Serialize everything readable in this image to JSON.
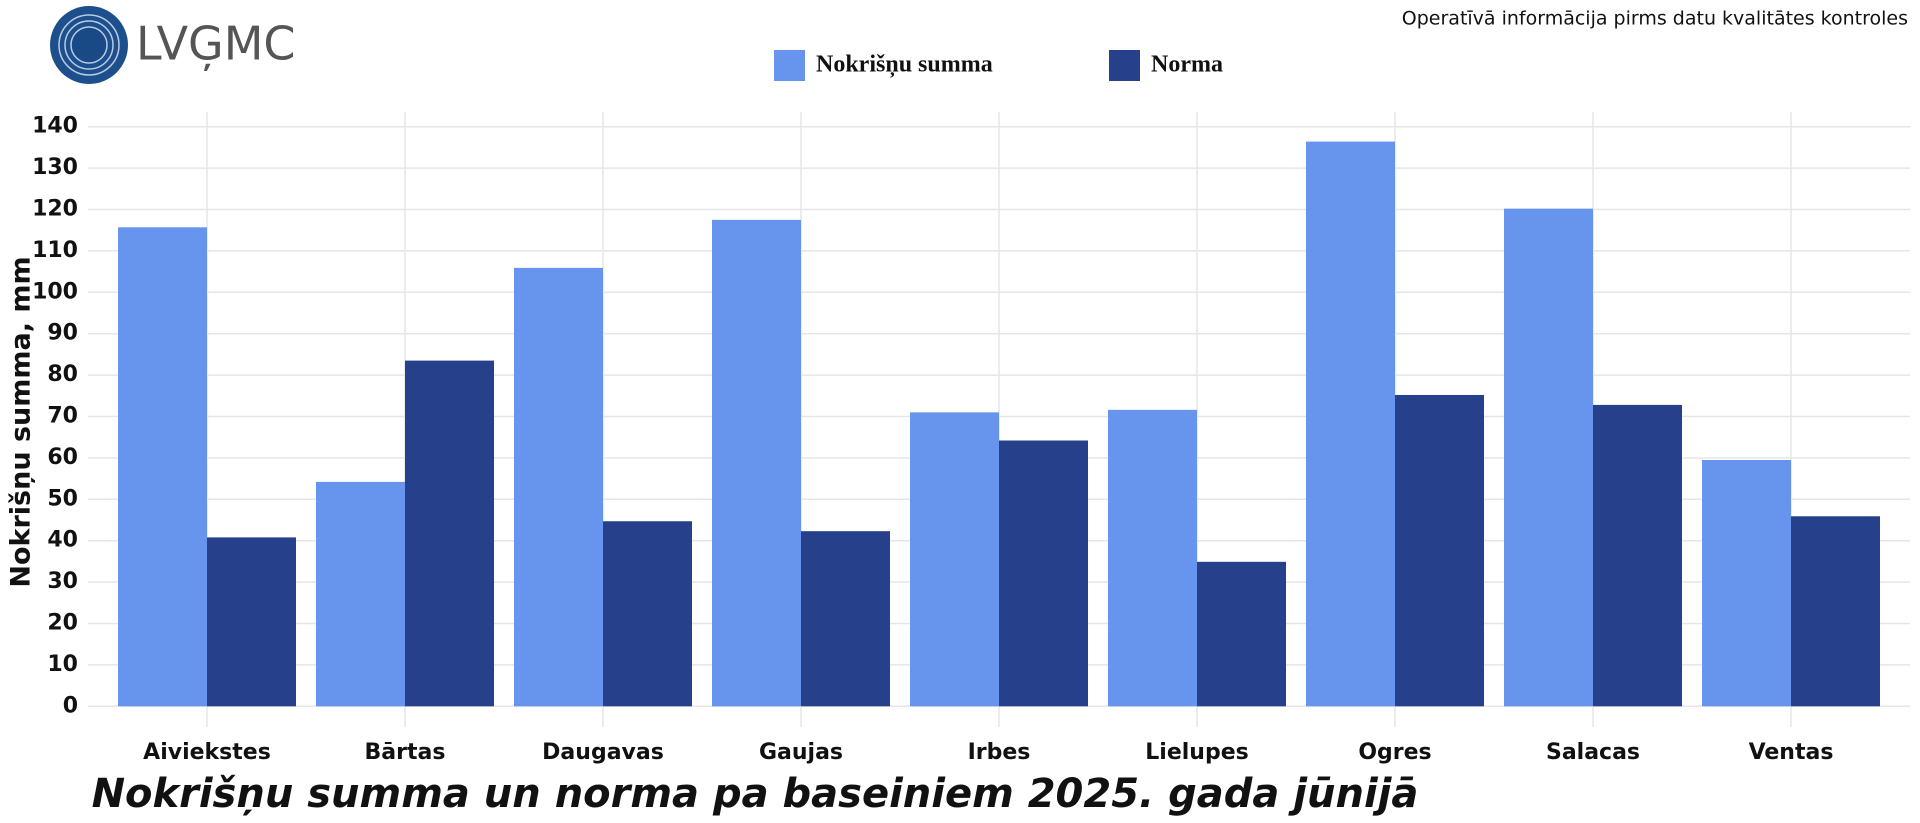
{
  "logo": "LVĢMC",
  "note": "Operatīvā informācija pirms datu kvalitātes kontroles",
  "chart_data": {
    "type": "bar",
    "title": "Nokrišņu summa un norma pa baseiniem 2025. gada jūnijā",
    "y_label": "Nokrišņu summa, mm",
    "categories": [
      "Aiviekstes",
      "Bārtas",
      "Daugavas",
      "Gaujas",
      "Irbes",
      "Lielupes",
      "Ogres",
      "Salacas",
      "Ventas"
    ],
    "series": [
      {
        "name": "Nokrišņu summa",
        "color": "#6794ec",
        "values": [
          115.7,
          54.2,
          105.9,
          117.5,
          71.0,
          71.6,
          136.4,
          120.2,
          59.5
        ]
      },
      {
        "name": "Norma",
        "color": "#26408b",
        "values": [
          40.8,
          83.5,
          44.7,
          42.3,
          64.2,
          34.9,
          75.2,
          72.8,
          45.9
        ]
      }
    ],
    "ylim": [
      -5,
      145
    ],
    "yticks": [
      0,
      10,
      20,
      30,
      40,
      50,
      60,
      70,
      80,
      90,
      100,
      110,
      120,
      130,
      140
    ],
    "grid": true
  }
}
